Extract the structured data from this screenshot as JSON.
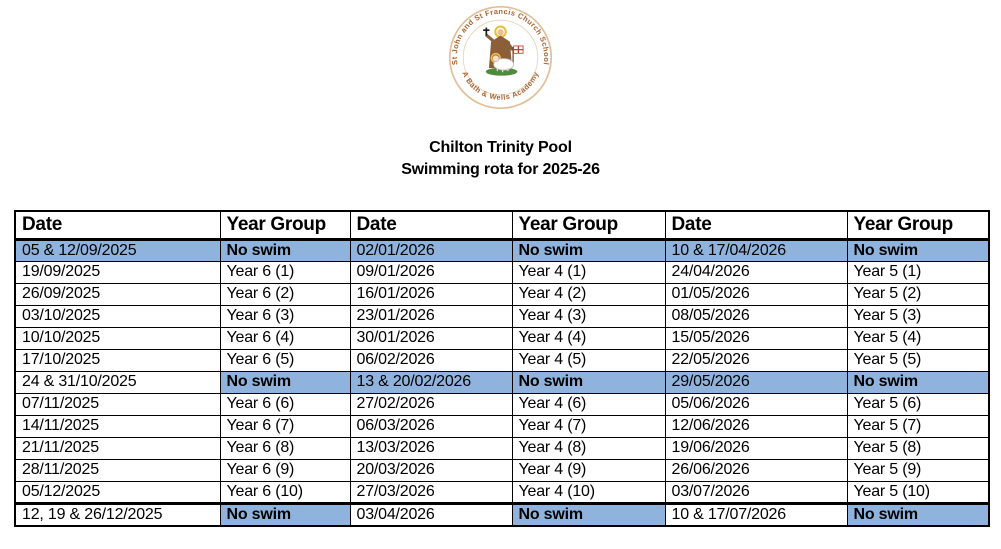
{
  "logo": {
    "icon": "school-crest-logo",
    "top_text": "St John and St Francis Church School",
    "bottom_text": "A Bath & Wells Academy",
    "ring_color": "#E2BE97",
    "text_color": "#A9622F"
  },
  "title": {
    "line1": "Chilton Trinity Pool",
    "line2": "Swimming rota for 2025-26"
  },
  "table": {
    "highlight_color": "#8FB3DC",
    "no_swim_label": "No swim",
    "headers": [
      "Date",
      "Year Group",
      "Date",
      "Year Group",
      "Date",
      "Year Group"
    ],
    "rows": [
      {
        "cells": [
          "05 & 12/09/2025",
          "No swim",
          "02/01/2026",
          "No swim",
          "10 & 17/04/2026",
          "No swim"
        ],
        "highlight": [
          1,
          1,
          1,
          1,
          1,
          1
        ]
      },
      {
        "cells": [
          "19/09/2025",
          "Year 6 (1)",
          "09/01/2026",
          "Year 4 (1)",
          "24/04/2026",
          "Year 5 (1)"
        ],
        "highlight": [
          0,
          0,
          0,
          0,
          0,
          0
        ]
      },
      {
        "cells": [
          "26/09/2025",
          "Year 6 (2)",
          "16/01/2026",
          "Year 4 (2)",
          "01/05/2026",
          "Year 5 (2)"
        ],
        "highlight": [
          0,
          0,
          0,
          0,
          0,
          0
        ]
      },
      {
        "cells": [
          "03/10/2025",
          "Year 6 (3)",
          "23/01/2026",
          "Year 4 (3)",
          "08/05/2026",
          "Year 5 (3)"
        ],
        "highlight": [
          0,
          0,
          0,
          0,
          0,
          0
        ]
      },
      {
        "cells": [
          "10/10/2025",
          "Year 6 (4)",
          "30/01/2026",
          "Year 4 (4)",
          "15/05/2026",
          "Year 5 (4)"
        ],
        "highlight": [
          0,
          0,
          0,
          0,
          0,
          0
        ]
      },
      {
        "cells": [
          "17/10/2025",
          "Year 6 (5)",
          "06/02/2026",
          "Year 4 (5)",
          "22/05/2026",
          "Year 5 (5)"
        ],
        "highlight": [
          0,
          0,
          0,
          0,
          0,
          0
        ]
      },
      {
        "cells": [
          "24 & 31/10/2025",
          "No swim",
          "13 & 20/02/2026",
          "No swim",
          "29/05/2026",
          "No swim"
        ],
        "highlight": [
          0,
          1,
          1,
          1,
          1,
          1
        ]
      },
      {
        "cells": [
          "07/11/2025",
          "Year 6 (6)",
          "27/02/2026",
          "Year 4 (6)",
          "05/06/2026",
          "Year 5 (6)"
        ],
        "highlight": [
          0,
          0,
          0,
          0,
          0,
          0
        ]
      },
      {
        "cells": [
          "14/11/2025",
          "Year 6 (7)",
          "06/03/2026",
          "Year 4 (7)",
          "12/06/2026",
          "Year 5 (7)"
        ],
        "highlight": [
          0,
          0,
          0,
          0,
          0,
          0
        ]
      },
      {
        "cells": [
          "21/11/2025",
          "Year 6 (8)",
          "13/03/2026",
          "Year 4 (8)",
          "19/06/2026",
          "Year 5 (8)"
        ],
        "highlight": [
          0,
          0,
          0,
          0,
          0,
          0
        ]
      },
      {
        "cells": [
          "28/11/2025",
          "Year 6 (9)",
          "20/03/2026",
          "Year 4 (9)",
          "26/06/2026",
          "Year 5 (9)"
        ],
        "highlight": [
          0,
          0,
          0,
          0,
          0,
          0
        ]
      },
      {
        "cells": [
          "05/12/2025",
          "Year 6 (10)",
          "27/03/2026",
          "Year 4 (10)",
          "03/07/2026",
          "Year 5 (10)"
        ],
        "highlight": [
          0,
          0,
          0,
          0,
          0,
          0
        ]
      },
      {
        "cells": [
          "12, 19 & 26/12/2025",
          "No swim",
          "03/04/2026",
          "No swim",
          "10 & 17/07/2026",
          "No swim"
        ],
        "highlight": [
          0,
          1,
          0,
          1,
          0,
          1
        ]
      }
    ]
  }
}
